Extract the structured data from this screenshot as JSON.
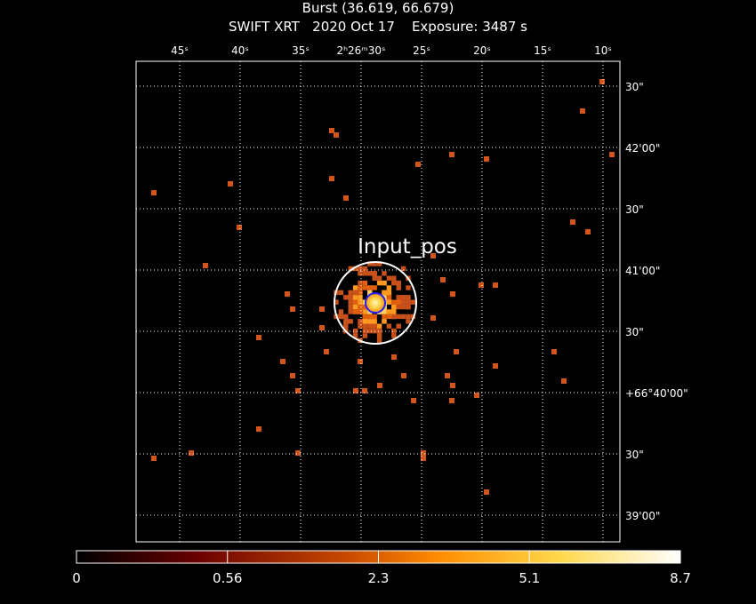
{
  "header": {
    "title": "Burst (36.619, 66.679)",
    "subtitle": "SWIFT XRT   2020 Oct 17    Exposure: 3487 s"
  },
  "ra_ticks": [
    "45ˢ",
    "40ˢ",
    "35ˢ",
    "2ʰ26ᵐ30ˢ",
    "25ˢ",
    "20ˢ",
    "15ˢ",
    "10ˢ"
  ],
  "dec_ticks": [
    "30\"",
    "42'00\"",
    "30\"",
    "41'00\"",
    "30\"",
    "+66°40'00\"",
    "30\"",
    "39'00\""
  ],
  "annotation": "Input_pos",
  "colorbar": {
    "labels": [
      "0",
      "0.56",
      "2.3",
      "5.1",
      "8.7"
    ]
  }
}
